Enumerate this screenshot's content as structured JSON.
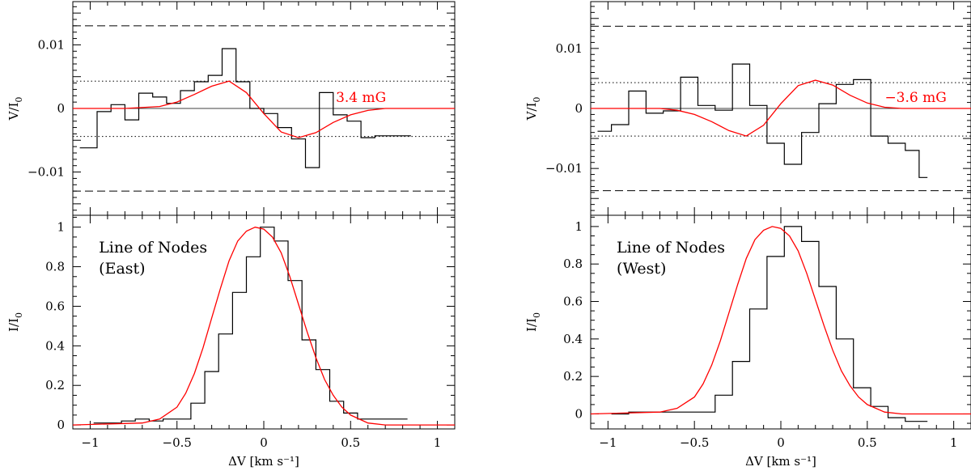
{
  "chart_data": [
    {
      "id": "east",
      "type": "line",
      "x_range": [
        -1.1,
        1.1
      ],
      "x_ticks": [
        -1,
        -0.5,
        0,
        0.5,
        1
      ],
      "x_tick_labels": [
        "−1",
        "−0.5",
        "0",
        "0.5",
        "1"
      ],
      "xlabel": "ΔV [km s⁻¹]",
      "top_panel": {
        "ylabel_main": "V/I",
        "ylabel_sub": "0",
        "ylim": [
          -0.0168,
          0.0168
        ],
        "y_ticks": [
          0.01,
          0,
          -0.01
        ],
        "y_tick_labels": [
          "0.01",
          "0",
          "−0.01"
        ],
        "annotation": "3.4 mG",
        "dashed_levels": [
          0.013,
          -0.013
        ],
        "dotted_levels": [
          0.0043,
          -0.0044
        ],
        "series": [
          {
            "name": "Observed V",
            "color": "#000000",
            "style": "step",
            "x": [
              -1.06,
              -0.96,
              -0.88,
              -0.8,
              -0.72,
              -0.64,
              -0.56,
              -0.48,
              -0.4,
              -0.32,
              -0.24,
              -0.16,
              -0.08,
              0.0,
              0.08,
              0.16,
              0.24,
              0.32,
              0.4,
              0.48,
              0.56,
              0.64,
              0.72,
              0.8
            ],
            "y": [
              -0.0062,
              -0.0005,
              0.0006,
              -0.0018,
              0.0024,
              0.0018,
              0.0008,
              0.0028,
              0.0042,
              0.0052,
              0.0094,
              0.0042,
              0.0,
              -0.0008,
              -0.003,
              -0.0048,
              -0.0093,
              0.0025,
              -0.001,
              -0.002,
              -0.0046,
              -0.0043,
              -0.0043,
              -0.0043
            ]
          },
          {
            "name": "Model V",
            "color": "#ff0000",
            "style": "line",
            "x": [
              -1.1,
              -0.8,
              -0.6,
              -0.5,
              -0.4,
              -0.3,
              -0.2,
              -0.1,
              0.0,
              0.1,
              0.2,
              0.3,
              0.4,
              0.5,
              0.6,
              0.7,
              1.1
            ],
            "y": [
              0,
              0,
              0.0003,
              0.001,
              0.0022,
              0.0035,
              0.0043,
              0.0025,
              -0.0008,
              -0.0037,
              -0.0046,
              -0.0038,
              -0.0022,
              -0.001,
              -0.0003,
              0,
              0
            ]
          }
        ]
      },
      "bottom_panel": {
        "ylabel_main": "I/I",
        "ylabel_sub": "0",
        "ylim": [
          -0.02,
          1.06
        ],
        "y_ticks": [
          0,
          0.2,
          0.4,
          0.6,
          0.8,
          1
        ],
        "y_tick_labels": [
          "0",
          "0.2",
          "0.4",
          "0.6",
          "0.8",
          "1"
        ],
        "annotation_line1": "Line of Nodes",
        "annotation_line2": "(East)",
        "series": [
          {
            "name": "Observed I",
            "color": "#000000",
            "style": "step",
            "x": [
              -0.98,
              -0.9,
              -0.82,
              -0.74,
              -0.66,
              -0.58,
              -0.5,
              -0.42,
              -0.34,
              -0.26,
              -0.18,
              -0.1,
              -0.02,
              0.06,
              0.14,
              0.22,
              0.3,
              0.38,
              0.46,
              0.54,
              0.62,
              0.7,
              0.78
            ],
            "y": [
              0.01,
              0.01,
              0.02,
              0.03,
              0.02,
              0.03,
              0.03,
              0.11,
              0.27,
              0.46,
              0.67,
              0.85,
              1.0,
              0.93,
              0.73,
              0.43,
              0.28,
              0.12,
              0.06,
              0.03,
              0.03,
              0.03,
              0.03
            ]
          },
          {
            "name": "Model I",
            "color": "#ff0000",
            "style": "line",
            "x": [
              -1.1,
              -0.7,
              -0.6,
              -0.5,
              -0.45,
              -0.4,
              -0.35,
              -0.3,
              -0.25,
              -0.2,
              -0.15,
              -0.1,
              -0.05,
              0.0,
              0.05,
              0.1,
              0.15,
              0.2,
              0.25,
              0.3,
              0.35,
              0.4,
              0.45,
              0.5,
              0.6,
              0.7,
              1.1
            ],
            "y": [
              0.0,
              0.01,
              0.03,
              0.09,
              0.16,
              0.26,
              0.39,
              0.54,
              0.69,
              0.83,
              0.93,
              0.98,
              1.0,
              0.99,
              0.95,
              0.87,
              0.75,
              0.61,
              0.47,
              0.34,
              0.23,
              0.15,
              0.09,
              0.05,
              0.01,
              0.0,
              0.0
            ]
          }
        ]
      }
    },
    {
      "id": "west",
      "type": "line",
      "x_range": [
        -1.1,
        1.1
      ],
      "x_ticks": [
        -1,
        -0.5,
        0,
        0.5,
        1
      ],
      "x_tick_labels": [
        "−1",
        "−0.5",
        "0",
        "0.5",
        "1"
      ],
      "xlabel": "ΔV [km s⁻¹]",
      "top_panel": {
        "ylabel_main": "V/I",
        "ylabel_sub": "0",
        "ylim": [
          -0.0178,
          0.0178
        ],
        "y_ticks": [
          0.01,
          0,
          -0.01
        ],
        "y_tick_labels": [
          "0.01",
          "0",
          "−0.01"
        ],
        "annotation": "−3.6 mG",
        "dashed_levels": [
          0.0137,
          -0.0137
        ],
        "dotted_levels": [
          0.0043,
          -0.0046
        ],
        "series": [
          {
            "name": "Observed V",
            "color": "#000000",
            "style": "step",
            "x": [
              -1.06,
              -0.98,
              -0.88,
              -0.78,
              -0.68,
              -0.58,
              -0.48,
              -0.38,
              -0.28,
              -0.18,
              -0.08,
              0.02,
              0.12,
              0.22,
              0.32,
              0.42,
              0.52,
              0.62,
              0.72,
              0.8
            ],
            "y": [
              -0.0038,
              -0.0027,
              0.0029,
              -0.0008,
              -0.0004,
              0.0052,
              0.0005,
              -0.0003,
              0.0074,
              0.0005,
              -0.0058,
              -0.0093,
              -0.004,
              0.0008,
              0.004,
              0.0048,
              -0.0046,
              -0.0058,
              -0.007,
              -0.0115
            ]
          },
          {
            "name": "Model V",
            "color": "#ff0000",
            "style": "line",
            "x": [
              -1.1,
              -0.7,
              -0.6,
              -0.5,
              -0.4,
              -0.3,
              -0.2,
              -0.1,
              0.0,
              0.1,
              0.2,
              0.3,
              0.4,
              0.5,
              0.6,
              0.7,
              1.1
            ],
            "y": [
              0,
              0,
              -0.0003,
              -0.001,
              -0.0022,
              -0.0037,
              -0.0046,
              -0.0028,
              0.0008,
              0.0038,
              0.0047,
              0.0039,
              0.0022,
              0.0009,
              0.0002,
              0,
              0
            ]
          }
        ]
      },
      "bottom_panel": {
        "ylabel_main": "I/I",
        "ylabel_sub": "0",
        "ylim": [
          -0.08,
          1.06
        ],
        "y_ticks": [
          0,
          0.2,
          0.4,
          0.6,
          0.8,
          1
        ],
        "y_tick_labels": [
          "0",
          "0.2",
          "0.4",
          "0.6",
          "0.8",
          "1"
        ],
        "annotation_line1": "Line of Nodes",
        "annotation_line2": "(West)",
        "series": [
          {
            "name": "Observed I",
            "color": "#000000",
            "style": "step",
            "x": [
              -0.98,
              -0.88,
              -0.78,
              -0.68,
              -0.58,
              -0.48,
              -0.38,
              -0.28,
              -0.18,
              -0.08,
              0.02,
              0.12,
              0.22,
              0.32,
              0.42,
              0.52,
              0.62,
              0.72,
              0.8
            ],
            "y": [
              0.0,
              0.01,
              0.01,
              0.01,
              0.01,
              0.01,
              0.1,
              0.28,
              0.56,
              0.84,
              1.0,
              0.92,
              0.68,
              0.4,
              0.14,
              0.04,
              -0.02,
              -0.04,
              -0.04
            ]
          },
          {
            "name": "Model I",
            "color": "#ff0000",
            "style": "line",
            "x": [
              -1.1,
              -0.7,
              -0.6,
              -0.5,
              -0.45,
              -0.4,
              -0.35,
              -0.3,
              -0.25,
              -0.2,
              -0.15,
              -0.1,
              -0.05,
              0.0,
              0.05,
              0.1,
              0.15,
              0.2,
              0.25,
              0.3,
              0.35,
              0.4,
              0.45,
              0.5,
              0.6,
              0.7,
              1.1
            ],
            "y": [
              0.0,
              0.01,
              0.03,
              0.09,
              0.16,
              0.26,
              0.39,
              0.54,
              0.69,
              0.83,
              0.93,
              0.98,
              1.0,
              0.99,
              0.95,
              0.87,
              0.75,
              0.61,
              0.47,
              0.34,
              0.23,
              0.15,
              0.09,
              0.05,
              0.01,
              0.0,
              0.0
            ]
          }
        ]
      }
    }
  ]
}
